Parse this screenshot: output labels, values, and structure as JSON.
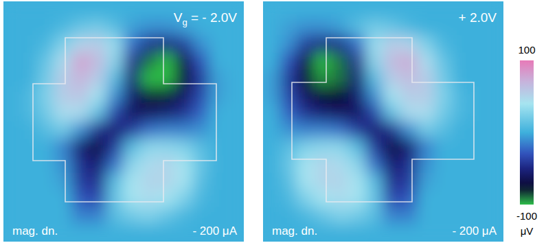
{
  "chart_data": [
    {
      "type": "heatmap",
      "title": "Vg = - 2.0V",
      "annotations": [
        "mag. dn.",
        "- 200 μA"
      ],
      "tick_labels": false,
      "cells": [
        [
          0,
          0,
          0,
          0,
          0,
          0,
          0,
          0,
          0,
          0,
          0,
          0,
          0,
          0
        ],
        [
          0,
          0,
          0,
          5,
          15,
          20,
          10,
          -5,
          -10,
          -10,
          -5,
          0,
          0,
          0
        ],
        [
          0,
          0,
          5,
          25,
          50,
          55,
          35,
          -20,
          -45,
          -50,
          -40,
          -10,
          0,
          0
        ],
        [
          0,
          0,
          15,
          45,
          80,
          65,
          30,
          -45,
          -90,
          -100,
          -70,
          -30,
          0,
          0
        ],
        [
          0,
          0,
          20,
          55,
          70,
          55,
          10,
          -55,
          -100,
          -100,
          -75,
          -40,
          -5,
          0
        ],
        [
          0,
          5,
          25,
          55,
          60,
          40,
          -10,
          -55,
          -80,
          -80,
          -60,
          -35,
          -5,
          0
        ],
        [
          0,
          5,
          20,
          45,
          45,
          15,
          -35,
          -60,
          -60,
          -55,
          -45,
          -25,
          0,
          0
        ],
        [
          0,
          0,
          10,
          20,
          -10,
          -45,
          -55,
          -40,
          -20,
          -15,
          -15,
          -10,
          0,
          0
        ],
        [
          0,
          0,
          0,
          -15,
          -55,
          -70,
          -40,
          10,
          30,
          30,
          25,
          10,
          0,
          0
        ],
        [
          0,
          0,
          0,
          -10,
          -45,
          -55,
          -20,
          30,
          45,
          50,
          40,
          15,
          0,
          0
        ],
        [
          0,
          0,
          0,
          -5,
          -40,
          -45,
          10,
          40,
          50,
          50,
          40,
          10,
          0,
          0
        ],
        [
          0,
          0,
          0,
          0,
          -30,
          -35,
          15,
          40,
          45,
          40,
          25,
          5,
          0,
          0
        ],
        [
          0,
          0,
          0,
          0,
          -15,
          -15,
          10,
          20,
          25,
          15,
          5,
          0,
          0,
          0
        ],
        [
          0,
          0,
          0,
          0,
          0,
          0,
          0,
          0,
          0,
          0,
          0,
          0,
          0,
          0
        ]
      ]
    },
    {
      "type": "heatmap",
      "title": "+ 2.0V",
      "annotations": [
        "mag. dn.",
        "- 200 μA"
      ],
      "tick_labels": false,
      "cells": [
        [
          0,
          0,
          0,
          0,
          0,
          0,
          0,
          0,
          0,
          0,
          0,
          0,
          0,
          0
        ],
        [
          0,
          -5,
          -10,
          -10,
          -5,
          10,
          20,
          15,
          5,
          0,
          0,
          0,
          0,
          0
        ],
        [
          0,
          -10,
          -40,
          -50,
          -45,
          -20,
          35,
          55,
          50,
          25,
          5,
          0,
          0,
          0
        ],
        [
          0,
          -30,
          -70,
          -100,
          -90,
          -45,
          30,
          65,
          75,
          45,
          15,
          0,
          0,
          0
        ],
        [
          -5,
          -40,
          -75,
          -95,
          -90,
          -55,
          10,
          55,
          65,
          55,
          20,
          0,
          0,
          0
        ],
        [
          -5,
          -35,
          -60,
          -75,
          -75,
          -55,
          -10,
          40,
          55,
          55,
          25,
          5,
          0,
          0
        ],
        [
          0,
          -25,
          -45,
          -55,
          -60,
          -60,
          -35,
          15,
          45,
          45,
          20,
          5,
          0,
          0
        ],
        [
          0,
          -10,
          -15,
          -15,
          -20,
          -40,
          -55,
          -45,
          -10,
          20,
          10,
          0,
          0,
          0
        ],
        [
          0,
          10,
          25,
          30,
          30,
          10,
          -40,
          -70,
          -55,
          -15,
          0,
          0,
          0,
          0
        ],
        [
          0,
          15,
          40,
          50,
          45,
          30,
          -20,
          -55,
          -45,
          -10,
          0,
          0,
          0,
          0
        ],
        [
          0,
          10,
          40,
          50,
          50,
          40,
          10,
          -45,
          -40,
          -5,
          0,
          0,
          0,
          0
        ],
        [
          0,
          5,
          25,
          40,
          45,
          40,
          15,
          -35,
          -30,
          0,
          0,
          0,
          0,
          0
        ],
        [
          0,
          0,
          5,
          15,
          25,
          20,
          10,
          -15,
          -15,
          0,
          0,
          0,
          0,
          0
        ],
        [
          0,
          0,
          0,
          0,
          0,
          0,
          0,
          0,
          0,
          0,
          0,
          0,
          0,
          0
        ]
      ],
      "colorbar": {
        "range": [
          -100,
          100
        ],
        "ticks": [
          -100,
          100
        ],
        "label": "μV"
      }
    }
  ]
}
